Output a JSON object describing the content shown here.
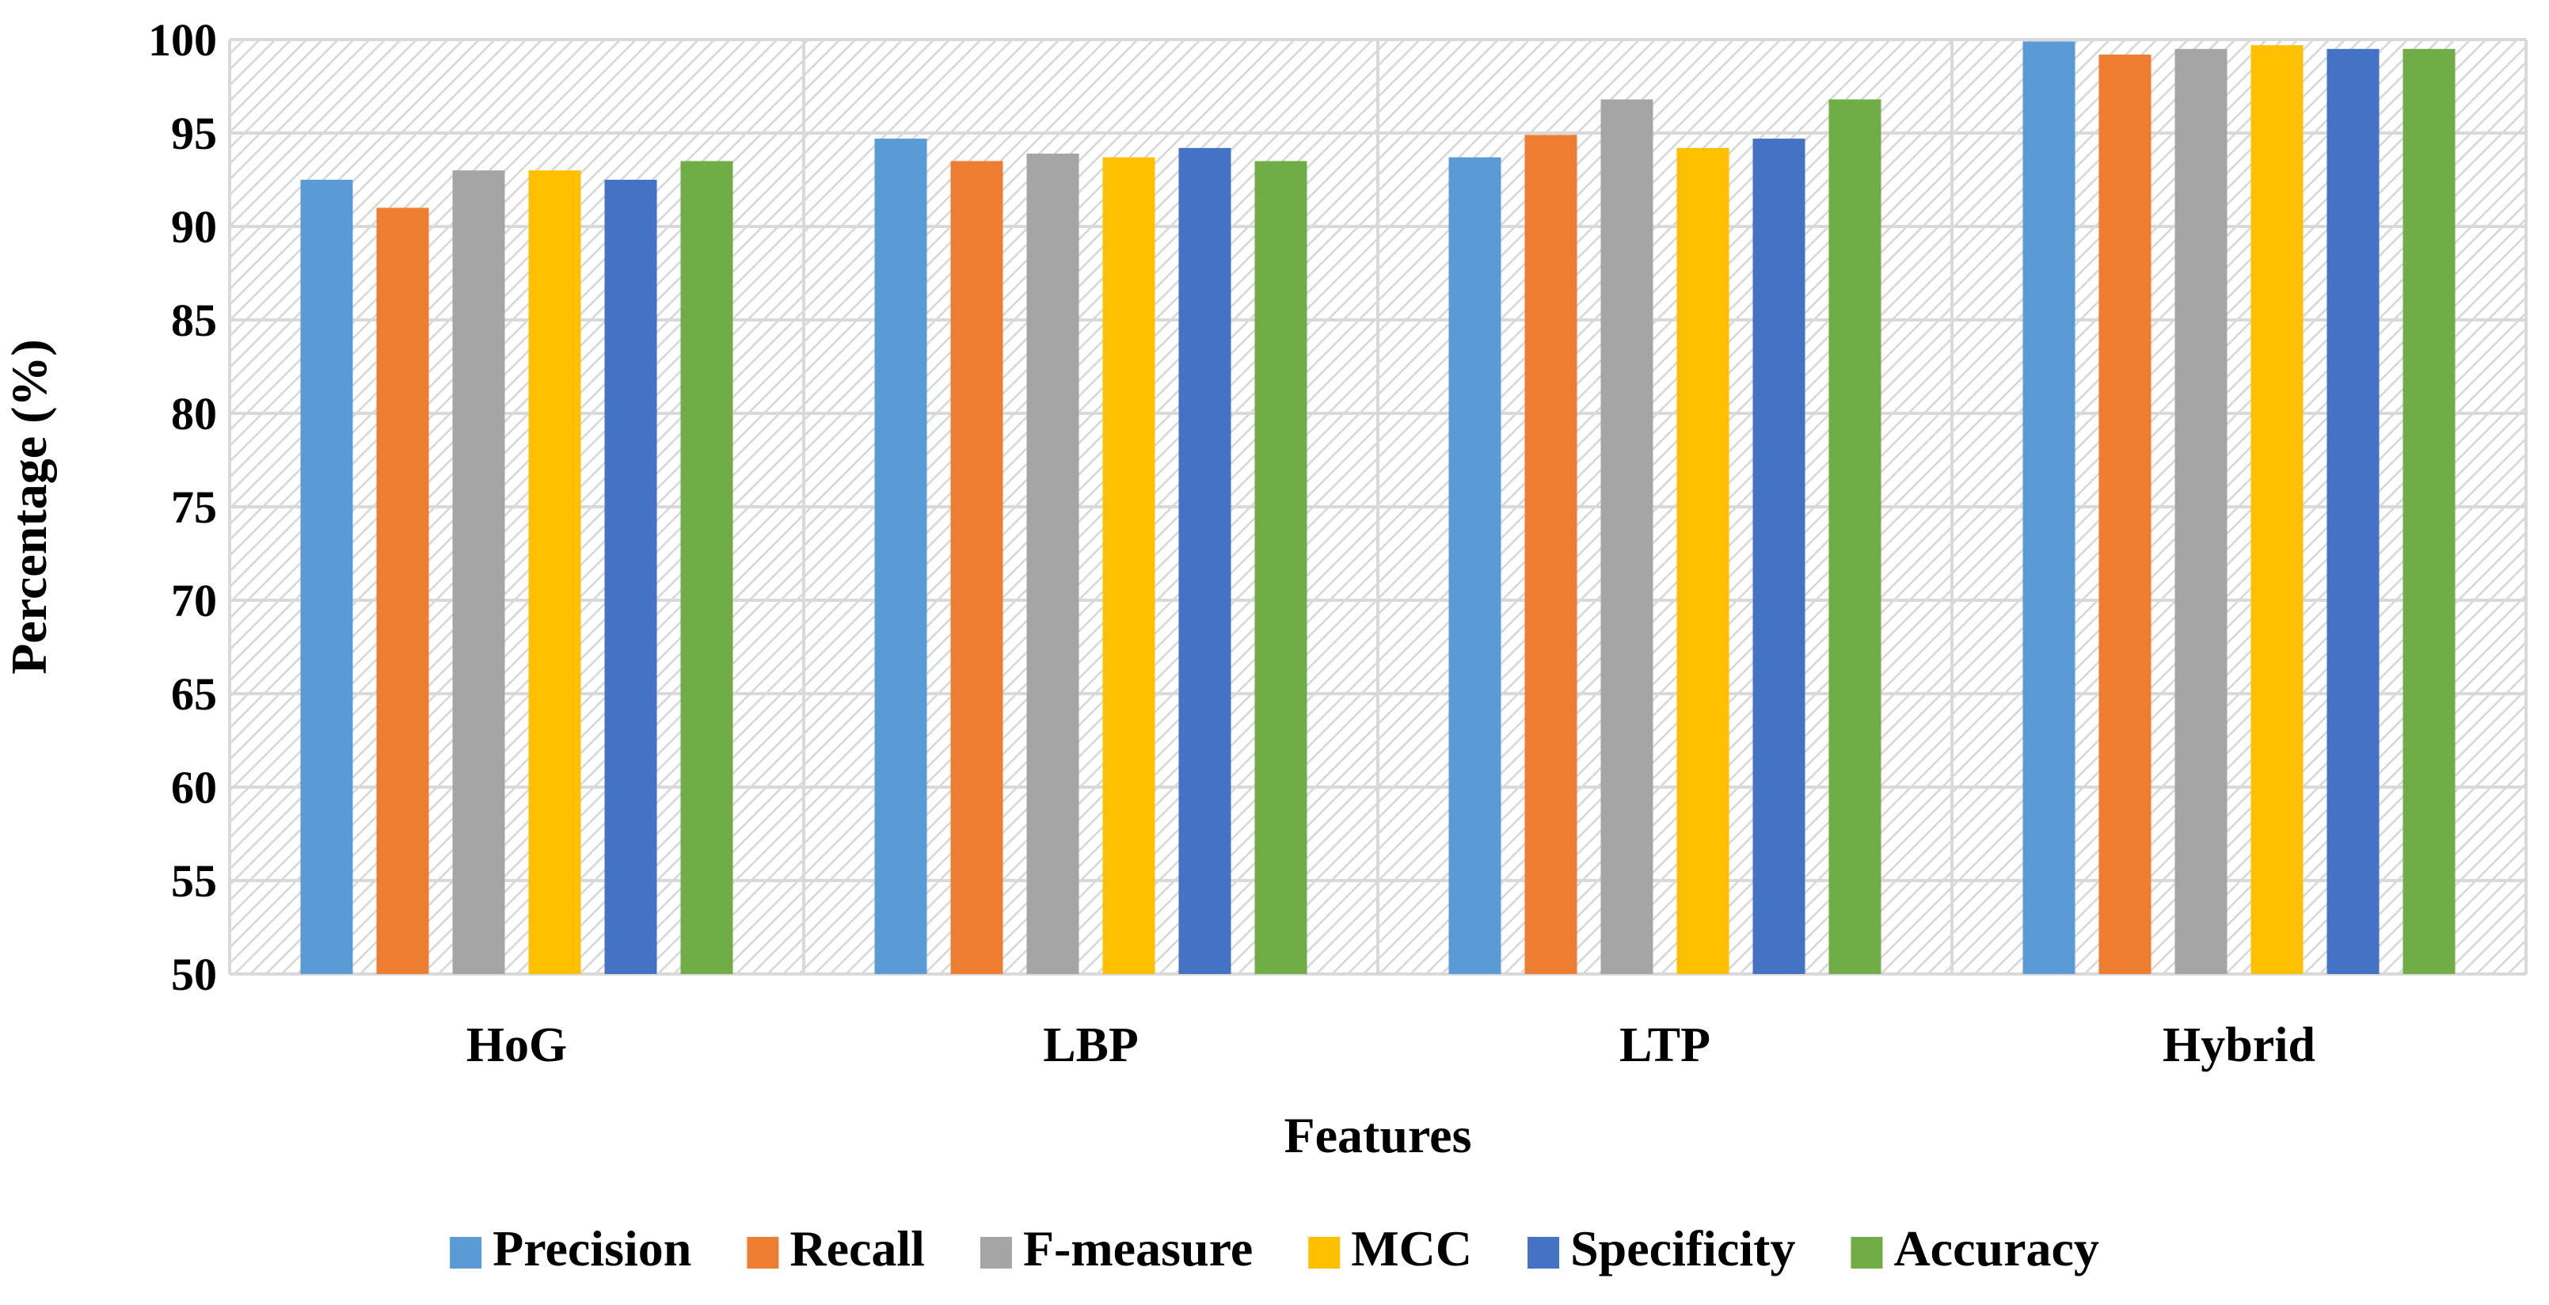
{
  "chart_data": {
    "type": "bar",
    "title": "",
    "xlabel": "Features",
    "ylabel": "Percentage (%)",
    "ylim": [
      50,
      100
    ],
    "yticks": [
      50,
      55,
      60,
      65,
      70,
      75,
      80,
      85,
      90,
      95,
      100
    ],
    "categories": [
      "HoG",
      "LBP",
      "LTP",
      "Hybrid"
    ],
    "grid": true,
    "legend_position": "bottom",
    "series": [
      {
        "name": "Precision",
        "color": "#5b9bd5",
        "values": [
          92.5,
          94.7,
          93.7,
          99.9
        ]
      },
      {
        "name": "Recall",
        "color": "#ed7d31",
        "values": [
          91.0,
          93.5,
          94.9,
          99.2
        ]
      },
      {
        "name": "F-measure",
        "color": "#a5a5a5",
        "values": [
          93.0,
          93.9,
          96.8,
          99.5
        ]
      },
      {
        "name": "MCC",
        "color": "#ffc000",
        "values": [
          93.0,
          93.7,
          94.2,
          99.7
        ]
      },
      {
        "name": "Specificity",
        "color": "#4472c4",
        "values": [
          92.5,
          94.2,
          94.7,
          99.5
        ]
      },
      {
        "name": "Accuracy",
        "color": "#70ad47",
        "values": [
          93.5,
          93.5,
          96.8,
          99.5
        ]
      }
    ]
  }
}
